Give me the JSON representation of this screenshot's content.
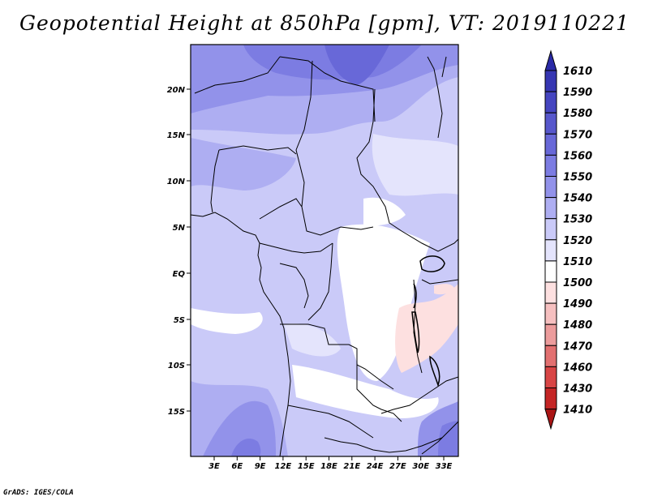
{
  "title": "Geopotential Height at 850hPa [gpm], VT: 2019110221",
  "credit": "GrADS: IGES/COLA",
  "lat_labels": [
    "20N",
    "15N",
    "10N",
    "5N",
    "EQ",
    "5S",
    "10S",
    "15S"
  ],
  "lon_labels": [
    "3E",
    "6E",
    "9E",
    "12E",
    "15E",
    "18E",
    "21E",
    "24E",
    "27E",
    "30E",
    "33E"
  ],
  "colorbar": {
    "labels": [
      "1610",
      "1590",
      "1580",
      "1570",
      "1560",
      "1550",
      "1540",
      "1530",
      "1520",
      "1510",
      "1500",
      "1490",
      "1480",
      "1470",
      "1460",
      "1430",
      "1410"
    ],
    "colors": [
      "#2a2aa6",
      "#3636b2",
      "#4545c0",
      "#5757cc",
      "#6868d8",
      "#7c7ce2",
      "#9292ea",
      "#aeaef2",
      "#cacaf8",
      "#e4e4fc",
      "#ffffff",
      "#fde0e0",
      "#f6c0c0",
      "#ec9c9c",
      "#e27070",
      "#d84545",
      "#c42525",
      "#aa1515"
    ]
  }
}
